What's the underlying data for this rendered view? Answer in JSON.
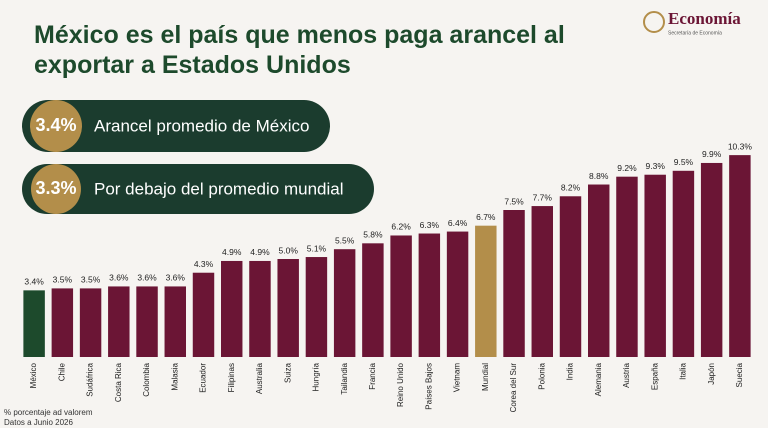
{
  "header": {
    "logo": "Economía",
    "logo_subtitle": "Secretaría de Economía"
  },
  "callouts": [
    {
      "value": "3.4%",
      "label": "Arancel promedio de México"
    },
    {
      "value": "3.3%",
      "label": "Por debajo del promedio mundial"
    }
  ],
  "footnotes": [
    "% porcentaje ad valorem",
    "Datos a Junio 2026"
  ],
  "chart_data": {
    "type": "bar",
    "title": "México es el país que menos paga arancel al exportar a Estados Unidos",
    "categories": [
      "México",
      "Chile",
      "Sudáfrica",
      "Costa Rica",
      "Colombia",
      "Malasia",
      "Ecuador",
      "Filipinas",
      "Australia",
      "Suiza",
      "Hungría",
      "Tailandia",
      "Francia",
      "Reino Unido",
      "Países Bajos",
      "Vietnam",
      "Mundial",
      "Corea del Sur",
      "Polonia",
      "India",
      "Alemania",
      "Austria",
      "España",
      "Italia",
      "Japón",
      "Suecia"
    ],
    "values": [
      3.4,
      3.5,
      3.5,
      3.6,
      3.6,
      3.6,
      4.3,
      4.9,
      4.9,
      5.0,
      5.1,
      5.5,
      5.8,
      6.2,
      6.3,
      6.4,
      6.7,
      7.5,
      7.7,
      8.2,
      8.8,
      9.2,
      9.3,
      9.5,
      9.9,
      10.3
    ],
    "value_labels": [
      "3.4%",
      "3.5%",
      "3.5%",
      "3.6%",
      "3.6%",
      "3.6%",
      "4.3%",
      "4.9%",
      "4.9%",
      "5.0%",
      "5.1%",
      "5.5%",
      "5.8%",
      "6.2%",
      "6.3%",
      "6.4%",
      "6.7%",
      "7.5%",
      "7.7%",
      "8.2%",
      "8.8%",
      "9.2%",
      "9.3%",
      "9.5%",
      "9.9%",
      "10.3%"
    ],
    "colors": [
      "#1d4a2c",
      "#6b1535",
      "#6b1535",
      "#6b1535",
      "#6b1535",
      "#6b1535",
      "#6b1535",
      "#6b1535",
      "#6b1535",
      "#6b1535",
      "#6b1535",
      "#6b1535",
      "#6b1535",
      "#6b1535",
      "#6b1535",
      "#6b1535",
      "#b38e4a",
      "#6b1535",
      "#6b1535",
      "#6b1535",
      "#6b1535",
      "#6b1535",
      "#6b1535",
      "#6b1535",
      "#6b1535",
      "#6b1535"
    ]
  }
}
